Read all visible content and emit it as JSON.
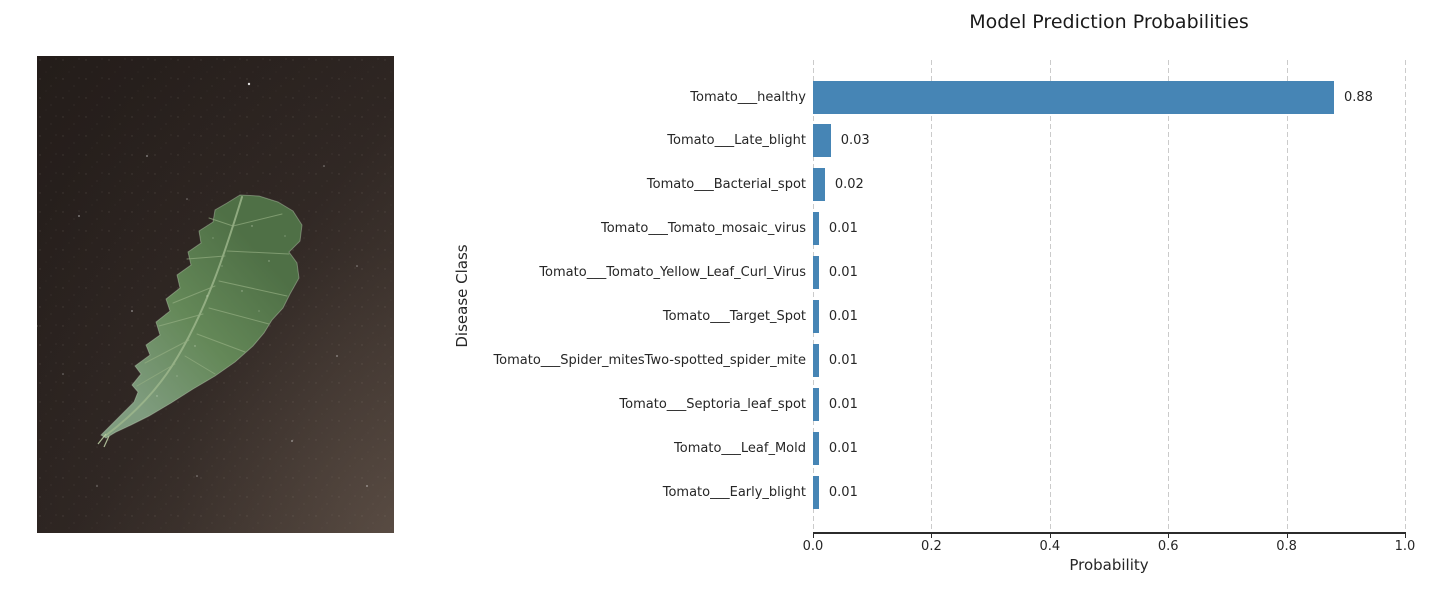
{
  "photo": {
    "alt": "tomato leaf lying on a dark textured surface",
    "background_dark": "#241d1a",
    "background_mid": "#2b2320",
    "background_light": "#453a33",
    "leaf_dark": "#4f7046",
    "leaf_mid": "#648858",
    "leaf_light": "#7f9c7f",
    "vein_color": "#9fb88d",
    "speck_color": "#e8e2d8"
  },
  "chart_data": {
    "type": "bar",
    "orientation": "horizontal",
    "title": "Model Prediction Probabilities",
    "xlabel": "Probability",
    "ylabel": "Disease Class",
    "xlim": [
      0.0,
      1.0
    ],
    "grid": "vertical-dashed",
    "legend": "none",
    "bar_color": "#4685b5",
    "grid_color": "#cbcbcb",
    "categories": [
      "Tomato___healthy",
      "Tomato___Late_blight",
      "Tomato___Bacterial_spot",
      "Tomato___Tomato_mosaic_virus",
      "Tomato___Tomato_Yellow_Leaf_Curl_Virus",
      "Tomato___Target_Spot",
      "Tomato___Spider_mitesTwo-spotted_spider_mite",
      "Tomato___Septoria_leaf_spot",
      "Tomato___Leaf_Mold",
      "Tomato___Early_blight"
    ],
    "values": [
      0.88,
      0.03,
      0.02,
      0.01,
      0.01,
      0.01,
      0.01,
      0.01,
      0.01,
      0.01
    ],
    "value_labels": [
      "0.88",
      "0.03",
      "0.02",
      "0.01",
      "0.01",
      "0.01",
      "0.01",
      "0.01",
      "0.01",
      "0.01"
    ],
    "x_tick_labels": [
      "0.0",
      "0.2",
      "0.4",
      "0.6",
      "0.8",
      "1.0"
    ],
    "x_tick_values": [
      0.0,
      0.2,
      0.4,
      0.6,
      0.8,
      1.0
    ]
  }
}
